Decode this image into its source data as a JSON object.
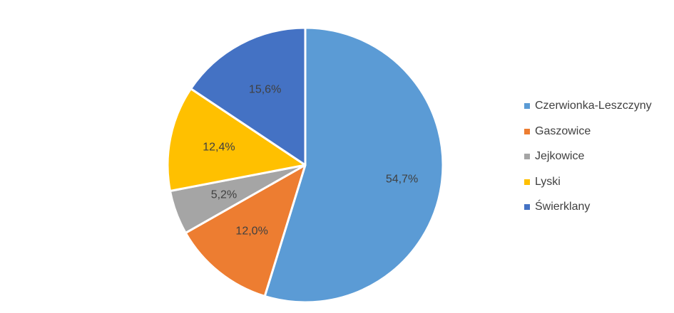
{
  "chart_data": {
    "type": "pie",
    "title": "",
    "legend_position": "right",
    "slices": [
      {
        "label": "Czerwionka-Leszczyny",
        "value": 54.7,
        "display": "54,7%",
        "color": "#5B9BD5"
      },
      {
        "label": "Gaszowice",
        "value": 12.0,
        "display": "12,0%",
        "color": "#ED7D31"
      },
      {
        "label": "Jejkowice",
        "value": 5.2,
        "display": "5,2%",
        "color": "#A5A5A5"
      },
      {
        "label": "Lyski",
        "value": 12.4,
        "display": "12,4%",
        "color": "#FFC000"
      },
      {
        "label": "Świerklany",
        "value": 15.6,
        "display": "15,6%",
        "color": "#4472C4"
      }
    ]
  }
}
